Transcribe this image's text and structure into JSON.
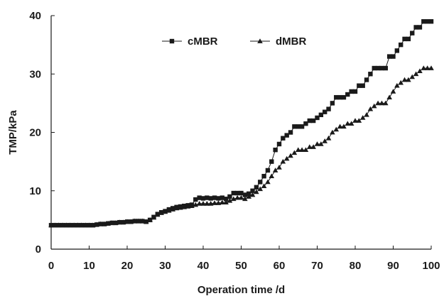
{
  "chart_data": {
    "type": "line",
    "xlabel": "Operation time /d",
    "ylabel": "TMP/kPa",
    "xlim": [
      0,
      100
    ],
    "ylim": [
      0,
      40
    ],
    "xticks": [
      0,
      10,
      20,
      30,
      40,
      50,
      60,
      70,
      80,
      90,
      100
    ],
    "yticks": [
      0,
      10,
      20,
      30,
      40
    ],
    "grid": false,
    "legend_position": "top-center",
    "series": [
      {
        "name": "cMBR",
        "marker": "square",
        "color": "#1a1a1a",
        "x": [
          0,
          1,
          2,
          3,
          4,
          5,
          6,
          7,
          8,
          9,
          10,
          11,
          12,
          13,
          14,
          15,
          16,
          17,
          18,
          19,
          20,
          21,
          22,
          23,
          24,
          25,
          26,
          27,
          28,
          29,
          30,
          31,
          32,
          33,
          34,
          35,
          36,
          37,
          38,
          39,
          40,
          41,
          42,
          43,
          44,
          45,
          46,
          47,
          48,
          49,
          50,
          51,
          52,
          53,
          54,
          55,
          56,
          57,
          58,
          59,
          60,
          61,
          62,
          63,
          64,
          65,
          66,
          67,
          68,
          69,
          70,
          71,
          72,
          73,
          74,
          75,
          76,
          77,
          78,
          79,
          80,
          81,
          82,
          83,
          84,
          85,
          86,
          87,
          88,
          89,
          90,
          91,
          92,
          93,
          94,
          95,
          96,
          97,
          98,
          99,
          100
        ],
        "y": [
          4.1,
          4.1,
          4.1,
          4.1,
          4.1,
          4.1,
          4.1,
          4.1,
          4.1,
          4.1,
          4.1,
          4.1,
          4.2,
          4.3,
          4.3,
          4.4,
          4.5,
          4.5,
          4.6,
          4.6,
          4.7,
          4.7,
          4.8,
          4.8,
          4.8,
          4.7,
          5.0,
          5.5,
          6.0,
          6.3,
          6.5,
          6.8,
          7.0,
          7.2,
          7.3,
          7.4,
          7.5,
          7.6,
          8.5,
          8.8,
          8.7,
          8.8,
          8.7,
          8.8,
          8.7,
          8.8,
          8.6,
          9.0,
          9.6,
          9.6,
          9.6,
          9.3,
          9.5,
          10.0,
          10.6,
          11.5,
          12.5,
          13.5,
          15.0,
          17.0,
          18.0,
          19.0,
          19.5,
          20.0,
          21.0,
          21.0,
          21.0,
          21.5,
          22.0,
          22.0,
          22.5,
          23.0,
          23.5,
          24.0,
          25.0,
          26.0,
          26.0,
          26.0,
          26.5,
          27.0,
          27.0,
          28.0,
          28.0,
          29.0,
          30.0,
          31.0,
          31.0,
          31.0,
          31.0,
          33.0,
          33.0,
          34.0,
          35.0,
          36.0,
          36.0,
          37.0,
          38.0,
          38.0,
          39.0,
          39.0,
          39.0
        ]
      },
      {
        "name": "dMBR",
        "marker": "triangle",
        "color": "#1a1a1a",
        "x": [
          0,
          1,
          2,
          3,
          4,
          5,
          6,
          7,
          8,
          9,
          10,
          11,
          12,
          13,
          14,
          15,
          16,
          17,
          18,
          19,
          20,
          21,
          22,
          23,
          24,
          25,
          26,
          27,
          28,
          29,
          30,
          31,
          32,
          33,
          34,
          35,
          36,
          37,
          38,
          39,
          40,
          41,
          42,
          43,
          44,
          45,
          46,
          47,
          48,
          49,
          50,
          51,
          52,
          53,
          54,
          55,
          56,
          57,
          58,
          59,
          60,
          61,
          62,
          63,
          64,
          65,
          66,
          67,
          68,
          69,
          70,
          71,
          72,
          73,
          74,
          75,
          76,
          77,
          78,
          79,
          80,
          81,
          82,
          83,
          84,
          85,
          86,
          87,
          88,
          89,
          90,
          91,
          92,
          93,
          94,
          95,
          96,
          97,
          98,
          99,
          100
        ],
        "y": [
          4.1,
          4.1,
          4.1,
          4.1,
          4.1,
          4.1,
          4.1,
          4.1,
          4.1,
          4.1,
          4.1,
          4.1,
          4.2,
          4.3,
          4.3,
          4.4,
          4.5,
          4.5,
          4.6,
          4.6,
          4.7,
          4.7,
          4.8,
          4.8,
          4.8,
          4.7,
          5.0,
          5.4,
          5.9,
          6.2,
          6.4,
          6.6,
          6.8,
          7.0,
          7.1,
          7.2,
          7.3,
          7.4,
          7.6,
          7.8,
          7.8,
          7.8,
          7.8,
          7.9,
          7.9,
          8.0,
          8.0,
          8.3,
          8.6,
          8.8,
          8.8,
          8.6,
          9.0,
          9.3,
          9.8,
          10.3,
          10.8,
          11.5,
          12.5,
          13.5,
          14.0,
          15.0,
          15.5,
          16.0,
          16.5,
          17.0,
          17.0,
          17.0,
          17.5,
          17.5,
          18.0,
          18.0,
          18.5,
          19.0,
          20.0,
          20.5,
          21.0,
          21.0,
          21.5,
          21.5,
          22.0,
          22.0,
          22.5,
          23.0,
          24.0,
          24.5,
          25.0,
          25.0,
          25.0,
          26.0,
          27.0,
          28.0,
          28.5,
          29.0,
          29.0,
          29.5,
          30.0,
          30.5,
          31.0,
          31.0,
          31.0
        ]
      }
    ]
  }
}
